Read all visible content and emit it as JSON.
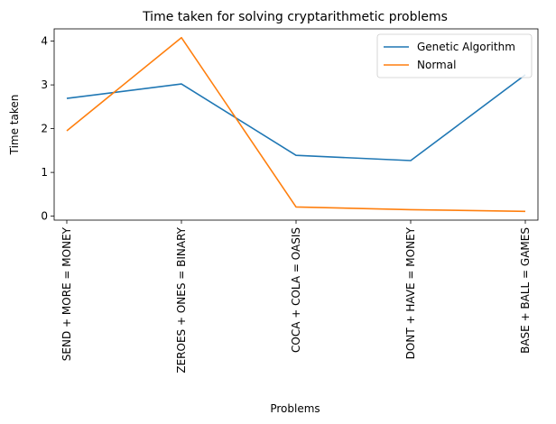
{
  "chart_data": {
    "type": "line",
    "title": "Time taken for solving cryptarithmetic problems",
    "xlabel": "Problems",
    "ylabel": "Time taken",
    "categories": [
      "SEND + MORE = MONEY",
      "ZEROES + ONES = BINARY",
      "COCA + COLA = OASIS",
      "DONT + HAVE = MONEY",
      "BASE + BALL = GAMES"
    ],
    "series": [
      {
        "name": "Genetic Algorithm",
        "color": "#1f77b4",
        "values": [
          2.69,
          3.02,
          1.39,
          1.27,
          3.23
        ]
      },
      {
        "name": "Normal",
        "color": "#ff7f0e",
        "values": [
          1.95,
          4.08,
          0.21,
          0.15,
          0.11
        ]
      }
    ],
    "ylim": [
      -0.09,
      4.28
    ],
    "yticks": [
      "0",
      "1",
      "2",
      "3",
      "4"
    ],
    "grid": false,
    "legend": "top-right"
  }
}
